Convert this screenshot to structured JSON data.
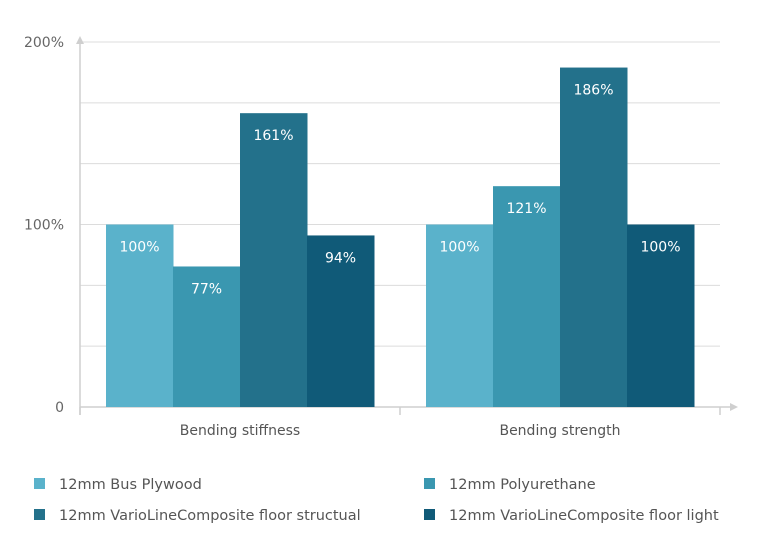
{
  "chart_data": {
    "type": "bar",
    "title": "",
    "xlabel": "",
    "ylabel": "",
    "ylim": [
      0,
      200
    ],
    "gridline_step": 33.333,
    "y_ticks": [
      {
        "value": 0,
        "label": "0"
      },
      {
        "value": 100,
        "label": "100%"
      },
      {
        "value": 200,
        "label": "200%"
      }
    ],
    "categories": [
      "Bending stiffness",
      "Bending strength"
    ],
    "series": [
      {
        "name": "12mm Bus Plywood",
        "color": "#5ab2cb",
        "values": [
          100,
          100
        ],
        "labels": [
          "100%",
          "100%"
        ]
      },
      {
        "name": "12mm Polyurethane",
        "color": "#3a97b0",
        "values": [
          77,
          121
        ],
        "labels": [
          "77%",
          "121%"
        ]
      },
      {
        "name": "12mm VarioLineComposite floor structual",
        "color": "#23718b",
        "values": [
          161,
          186
        ],
        "labels": [
          "161%",
          "186%"
        ]
      },
      {
        "name": "12mm VarioLineComposite floor light",
        "color": "#105a78",
        "values": [
          94,
          100
        ],
        "labels": [
          "94%",
          "100%"
        ]
      }
    ],
    "grid": true,
    "legend_position": "bottom"
  }
}
